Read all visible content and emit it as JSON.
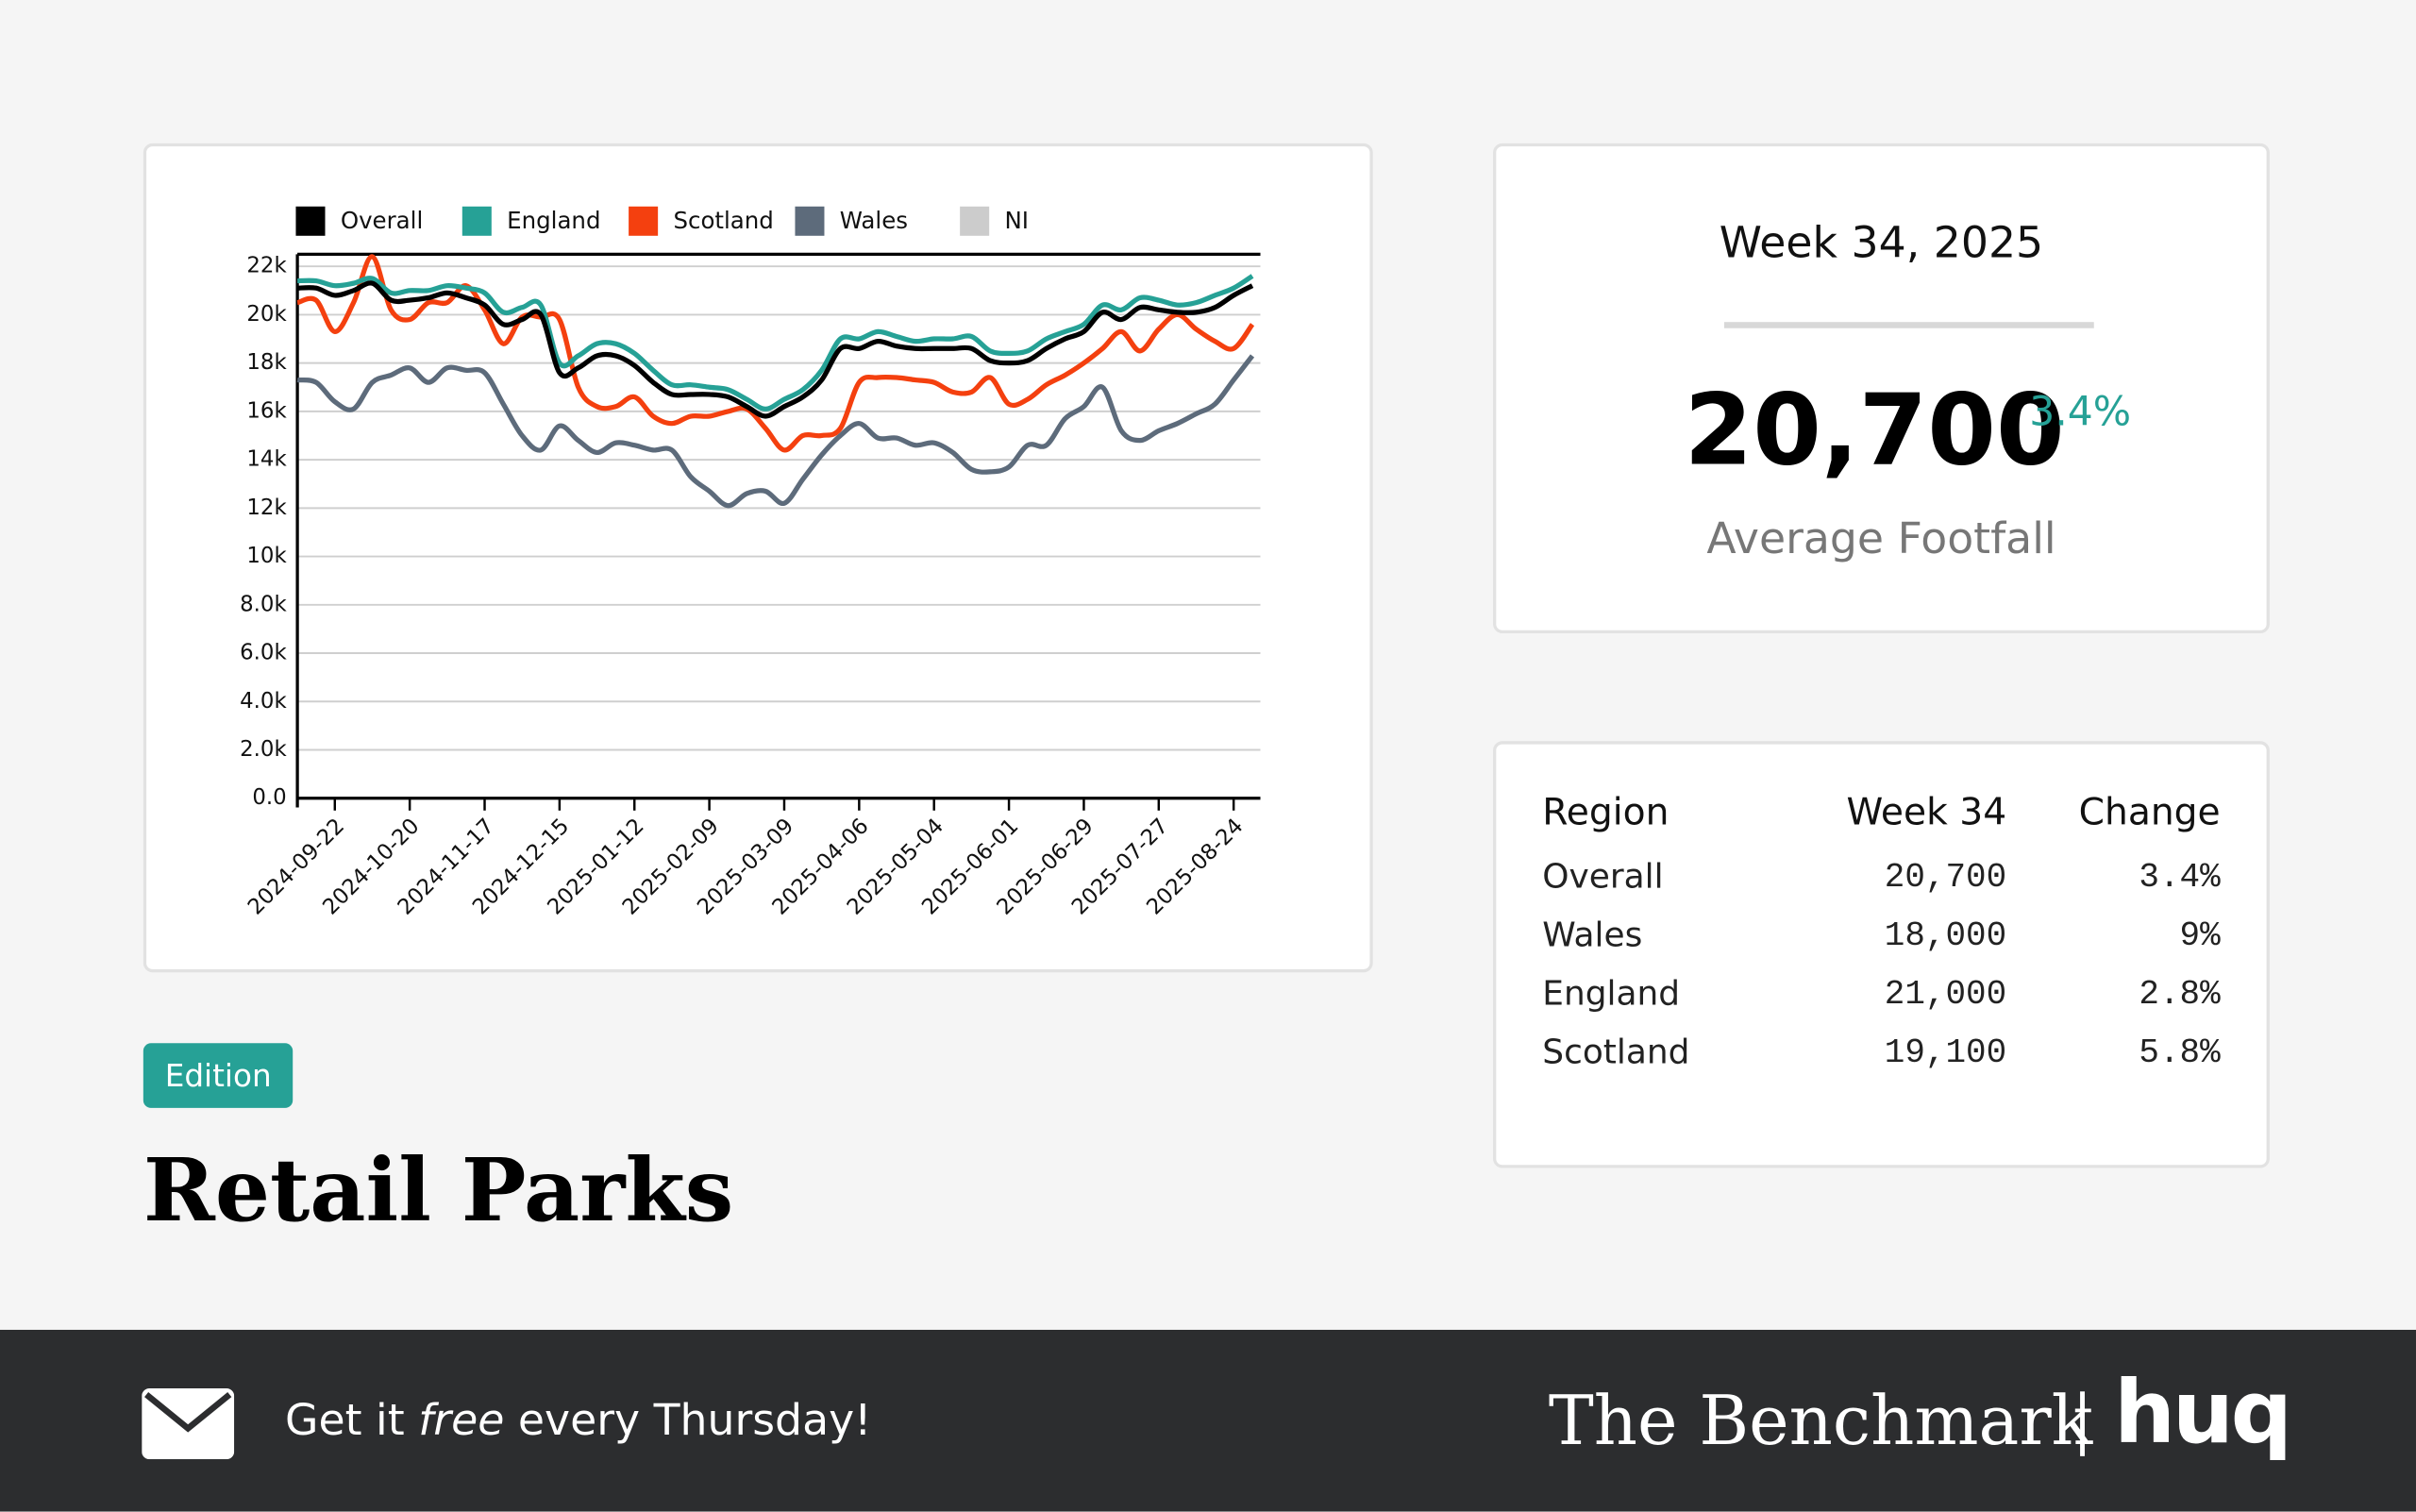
{
  "chart_data": {
    "type": "line",
    "x": [
      "2024-09-08",
      "2024-09-15",
      "2024-09-22",
      "2024-09-29",
      "2024-10-06",
      "2024-10-13",
      "2024-10-20",
      "2024-10-27",
      "2024-11-03",
      "2024-11-10",
      "2024-11-17",
      "2024-11-24",
      "2024-12-01",
      "2024-12-08",
      "2024-12-15",
      "2024-12-22",
      "2024-12-29",
      "2025-01-05",
      "2025-01-12",
      "2025-01-19",
      "2025-01-26",
      "2025-02-02",
      "2025-02-09",
      "2025-02-16",
      "2025-02-23",
      "2025-03-02",
      "2025-03-09",
      "2025-03-16",
      "2025-03-23",
      "2025-03-30",
      "2025-04-06",
      "2025-04-13",
      "2025-04-20",
      "2025-04-27",
      "2025-05-04",
      "2025-05-11",
      "2025-05-18",
      "2025-05-25",
      "2025-06-01",
      "2025-06-08",
      "2025-06-15",
      "2025-06-22",
      "2025-06-29",
      "2025-07-06",
      "2025-07-13",
      "2025-07-20",
      "2025-07-27",
      "2025-08-03",
      "2025-08-10",
      "2025-08-17",
      "2025-08-24",
      "2025-08-31"
    ],
    "series": [
      {
        "name": "Overall",
        "color": "#000000",
        "values": [
          21100,
          21100,
          20800,
          21000,
          21300,
          20600,
          20600,
          20700,
          20900,
          20700,
          20400,
          19600,
          19800,
          20000,
          17600,
          17800,
          18300,
          18300,
          17900,
          17200,
          16700,
          16700,
          16700,
          16600,
          16200,
          15800,
          16200,
          16600,
          17300,
          18600,
          18600,
          18900,
          18700,
          18600,
          18600,
          18600,
          18600,
          18100,
          18000,
          18100,
          18600,
          19000,
          19300,
          20100,
          19800,
          20300,
          20200,
          20100,
          20100,
          20300,
          20800,
          21200
        ]
      },
      {
        "name": "England",
        "color": "#26a196",
        "values": [
          21400,
          21400,
          21200,
          21300,
          21500,
          20900,
          21000,
          21000,
          21200,
          21100,
          20900,
          20100,
          20300,
          20400,
          18000,
          18300,
          18800,
          18800,
          18400,
          17700,
          17100,
          17100,
          17000,
          16900,
          16500,
          16100,
          16500,
          16900,
          17700,
          19000,
          19000,
          19300,
          19100,
          18900,
          19000,
          19000,
          19100,
          18500,
          18400,
          18500,
          19000,
          19300,
          19600,
          20400,
          20200,
          20700,
          20600,
          20400,
          20500,
          20800,
          21100,
          21600
        ]
      },
      {
        "name": "Scotland",
        "color": "#f4400f",
        "values": [
          20500,
          20600,
          19300,
          20500,
          22400,
          20200,
          19800,
          20500,
          20500,
          21200,
          20200,
          18800,
          19900,
          19900,
          19800,
          17000,
          16200,
          16200,
          16600,
          15800,
          15500,
          15800,
          15800,
          16000,
          16100,
          15300,
          14400,
          15000,
          15000,
          15300,
          17200,
          17400,
          17400,
          17300,
          17200,
          16800,
          16800,
          17400,
          16300,
          16500,
          17100,
          17500,
          18000,
          18600,
          19300,
          18500,
          19400,
          20000,
          19400,
          18900,
          18600,
          19600
        ]
      },
      {
        "name": "Wales",
        "color": "#5d6b7b",
        "values": [
          17300,
          17200,
          16400,
          16100,
          17200,
          17500,
          17800,
          17200,
          17800,
          17700,
          17600,
          16300,
          15000,
          14400,
          15400,
          14800,
          14300,
          14700,
          14600,
          14400,
          14400,
          13300,
          12700,
          12100,
          12600,
          12700,
          12200,
          13200,
          14200,
          15000,
          15500,
          14900,
          14900,
          14600,
          14700,
          14300,
          13600,
          13500,
          13700,
          14600,
          14600,
          15700,
          16200,
          17000,
          15200,
          14800,
          15200,
          15500,
          15900,
          16300,
          17300,
          18300
        ]
      },
      {
        "name": "NI",
        "color": "#cccccc",
        "values": [
          null,
          null,
          null,
          null,
          null,
          null,
          null,
          null,
          null,
          null,
          null,
          null,
          null,
          null,
          null,
          null,
          null,
          null,
          null,
          null,
          null,
          null,
          null,
          null,
          null,
          null,
          null,
          null,
          null,
          null,
          null,
          null,
          null,
          null,
          null,
          null,
          null,
          null,
          null,
          null,
          null,
          null,
          null,
          null,
          null,
          null,
          null,
          null,
          null,
          null,
          null,
          null
        ]
      }
    ],
    "xlim": [
      "2024-09-08",
      "2025-09-03"
    ],
    "xticks": [
      "2024-09-22",
      "2024-10-20",
      "2024-11-17",
      "2024-12-15",
      "2025-01-12",
      "2025-02-09",
      "2025-03-09",
      "2025-04-06",
      "2025-05-04",
      "2025-06-01",
      "2025-06-29",
      "2025-07-27",
      "2025-08-24"
    ],
    "ylim": [
      0,
      22500
    ],
    "yticks": [
      {
        "value": 0,
        "label": "0.0"
      },
      {
        "value": 2000,
        "label": "2.0k"
      },
      {
        "value": 4000,
        "label": "4.0k"
      },
      {
        "value": 6000,
        "label": "6.0k"
      },
      {
        "value": 8000,
        "label": "8.0k"
      },
      {
        "value": 10000,
        "label": "10k"
      },
      {
        "value": 12000,
        "label": "12k"
      },
      {
        "value": 14000,
        "label": "14k"
      },
      {
        "value": 16000,
        "label": "16k"
      },
      {
        "value": 18000,
        "label": "18k"
      },
      {
        "value": 20000,
        "label": "20k"
      },
      {
        "value": 22000,
        "label": "22k"
      }
    ],
    "grid": true,
    "legend": "top"
  },
  "summary": {
    "week": "Week 34, 2025",
    "value": "20,700",
    "change": "3.4%",
    "label": "Average Footfall"
  },
  "table": {
    "header": [
      "Region",
      "Week 34",
      "Change"
    ],
    "rows": [
      [
        "Overall",
        "20,700",
        "3.4%"
      ],
      [
        "Wales",
        "18,000",
        "9%"
      ],
      [
        "England",
        "21,000",
        "2.8%"
      ],
      [
        "Scotland",
        "19,100",
        "5.8%"
      ]
    ]
  },
  "edition": "Edition",
  "title": "Retail Parks",
  "footer": {
    "cta": [
      "Get it ",
      "free",
      " every Thursday!"
    ],
    "brand": "The Benchmark",
    "logo": "huq"
  }
}
